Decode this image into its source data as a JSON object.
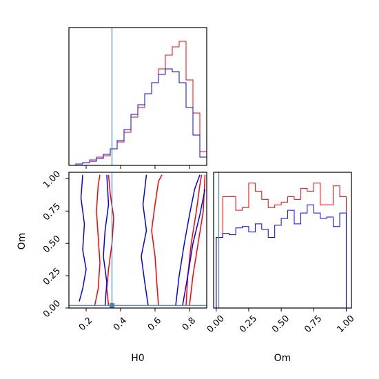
{
  "chart_data": [
    {
      "type": "histogram",
      "panel": "H0 marginal",
      "xlim": [
        0.1,
        0.9
      ],
      "ylim": [
        0,
        1
      ],
      "bin_edges": [
        0.1,
        0.14,
        0.18,
        0.22,
        0.26,
        0.3,
        0.34,
        0.38,
        0.42,
        0.46,
        0.5,
        0.54,
        0.58,
        0.62,
        0.66,
        0.7,
        0.74,
        0.78,
        0.82,
        0.86,
        0.9
      ],
      "truth_x": 0.35,
      "series": [
        {
          "color": "#ff0000",
          "values": [
            0.0,
            0.01,
            0.02,
            0.04,
            0.06,
            0.07,
            0.12,
            0.17,
            0.24,
            0.35,
            0.42,
            0.52,
            0.6,
            0.7,
            0.8,
            0.86,
            0.9,
            0.62,
            0.38,
            0.1
          ]
        },
        {
          "color": "#0000ff",
          "values": [
            0.0,
            0.01,
            0.02,
            0.03,
            0.05,
            0.08,
            0.12,
            0.18,
            0.26,
            0.37,
            0.44,
            0.52,
            0.6,
            0.66,
            0.7,
            0.68,
            0.6,
            0.42,
            0.22,
            0.06
          ]
        }
      ]
    },
    {
      "type": "contour",
      "panel": "H0 vs Om",
      "xlabel": "H0",
      "ylabel": "Om",
      "xlim": [
        0.1,
        0.9
      ],
      "ylim": [
        0.0,
        1.05
      ],
      "xticks": [
        "0.2",
        "0.4",
        "0.6",
        "0.8"
      ],
      "xtick_values": [
        0.2,
        0.4,
        0.6,
        0.8
      ],
      "yticks": [
        "0.00",
        "0.25",
        "0.50",
        "0.75",
        "1.00"
      ],
      "ytick_values": [
        0.0,
        0.25,
        0.5,
        0.75,
        1.0
      ],
      "truth_point": [
        0.35,
        0.02
      ],
      "series": [
        {
          "color": "#ff0000",
          "lines": [
            [
              [
                0.25,
                0.02
              ],
              [
                0.27,
                0.15
              ],
              [
                0.28,
                0.35
              ],
              [
                0.27,
                0.55
              ],
              [
                0.26,
                0.75
              ],
              [
                0.27,
                0.95
              ],
              [
                0.28,
                1.03
              ]
            ],
            [
              [
                0.33,
                0.02
              ],
              [
                0.32,
                0.15
              ],
              [
                0.33,
                0.3
              ],
              [
                0.35,
                0.5
              ],
              [
                0.36,
                0.7
              ],
              [
                0.34,
                0.88
              ],
              [
                0.33,
                1.03
              ]
            ],
            [
              [
                0.62,
                0.02
              ],
              [
                0.61,
                0.2
              ],
              [
                0.6,
                0.4
              ],
              [
                0.58,
                0.6
              ],
              [
                0.6,
                0.8
              ],
              [
                0.62,
                0.98
              ],
              [
                0.64,
                1.03
              ]
            ],
            [
              [
                0.78,
                0.02
              ],
              [
                0.79,
                0.25
              ],
              [
                0.81,
                0.5
              ],
              [
                0.84,
                0.75
              ],
              [
                0.86,
                0.95
              ],
              [
                0.87,
                1.03
              ]
            ],
            [
              [
                0.8,
                0.02
              ],
              [
                0.82,
                0.25
              ],
              [
                0.85,
                0.5
              ],
              [
                0.88,
                0.75
              ],
              [
                0.89,
                1.03
              ]
            ]
          ]
        },
        {
          "color": "#0000ff",
          "lines": [
            [
              [
                0.16,
                0.05
              ],
              [
                0.18,
                0.15
              ],
              [
                0.2,
                0.3
              ],
              [
                0.18,
                0.45
              ],
              [
                0.19,
                0.65
              ],
              [
                0.17,
                0.85
              ],
              [
                0.18,
                1.03
              ]
            ],
            [
              [
                0.31,
                0.02
              ],
              [
                0.32,
                0.2
              ],
              [
                0.3,
                0.4
              ],
              [
                0.31,
                0.6
              ],
              [
                0.33,
                0.8
              ],
              [
                0.32,
                1.03
              ]
            ],
            [
              [
                0.56,
                0.02
              ],
              [
                0.54,
                0.2
              ],
              [
                0.52,
                0.4
              ],
              [
                0.55,
                0.6
              ],
              [
                0.53,
                0.8
              ],
              [
                0.55,
                1.03
              ]
            ],
            [
              [
                0.72,
                0.02
              ],
              [
                0.74,
                0.25
              ],
              [
                0.77,
                0.5
              ],
              [
                0.8,
                0.72
              ],
              [
                0.83,
                0.92
              ],
              [
                0.86,
                1.03
              ]
            ],
            [
              [
                0.76,
                0.02
              ],
              [
                0.79,
                0.25
              ],
              [
                0.82,
                0.5
              ],
              [
                0.86,
                0.72
              ],
              [
                0.89,
                0.92
              ]
            ]
          ]
        }
      ]
    },
    {
      "type": "histogram",
      "panel": "Om marginal",
      "xlabel": "Om",
      "xlim": [
        -0.02,
        1.04
      ],
      "ylim": [
        0,
        1
      ],
      "xticks": [
        "0.00",
        "0.25",
        "0.50",
        "0.75",
        "1.00"
      ],
      "xtick_values": [
        0.0,
        0.25,
        0.5,
        0.75,
        1.0
      ],
      "bin_edges": [
        0.0,
        0.05,
        0.1,
        0.15,
        0.2,
        0.25,
        0.3,
        0.35,
        0.4,
        0.45,
        0.5,
        0.55,
        0.6,
        0.65,
        0.7,
        0.75,
        0.8,
        0.85,
        0.9,
        0.95,
        1.0
      ],
      "truth_x": 0.02,
      "series": [
        {
          "color": "#ff0000",
          "values": [
            0.52,
            0.82,
            0.82,
            0.72,
            0.74,
            0.92,
            0.86,
            0.8,
            0.74,
            0.76,
            0.78,
            0.82,
            0.8,
            0.88,
            0.86,
            0.92,
            0.76,
            0.76,
            0.9,
            0.82
          ]
        },
        {
          "color": "#0000ff",
          "values": [
            0.52,
            0.55,
            0.54,
            0.59,
            0.6,
            0.56,
            0.62,
            0.58,
            0.52,
            0.61,
            0.66,
            0.72,
            0.62,
            0.7,
            0.76,
            0.7,
            0.66,
            0.67,
            0.6,
            0.7
          ]
        }
      ]
    }
  ],
  "colors": {
    "red": "#ff0000",
    "blue": "#0000ff",
    "truth": "#4682b4"
  }
}
